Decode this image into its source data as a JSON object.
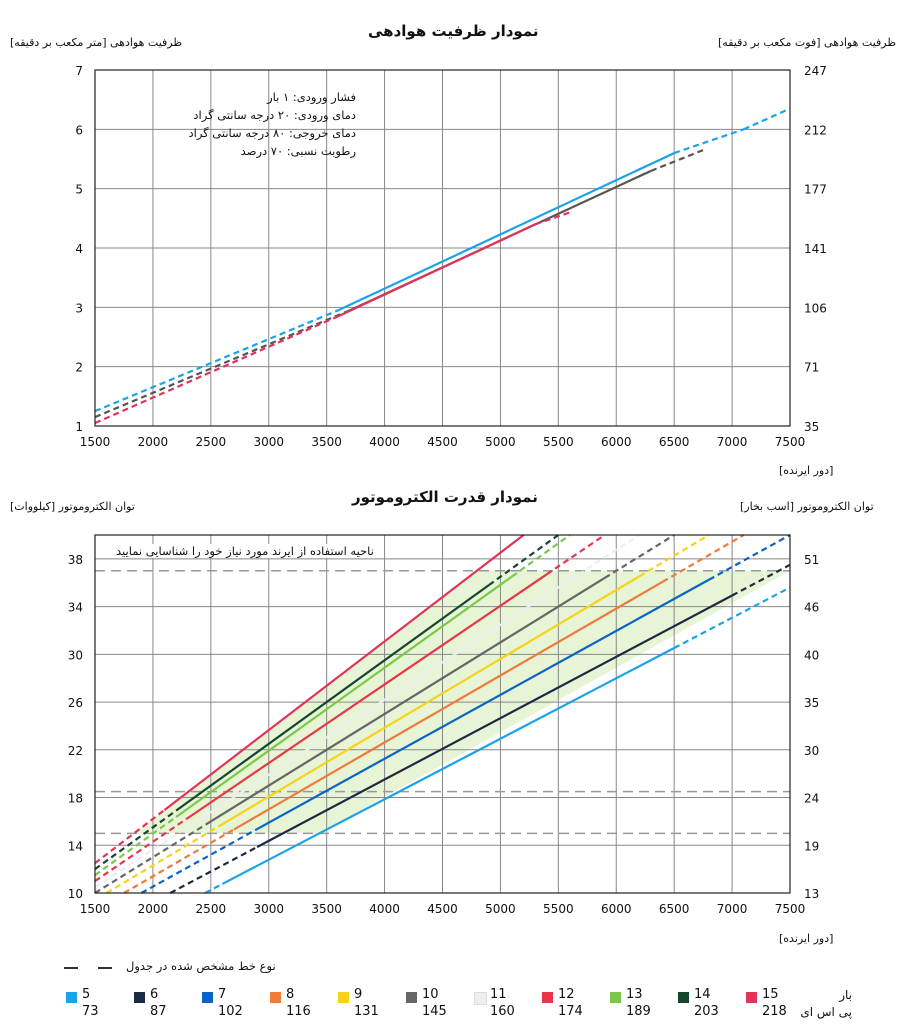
{
  "top_chart": {
    "title": "نمودار ظرفیت هوادهی",
    "left_axis_label": "ظرفیت هوادهی [متر مکعب بر دقیقه]",
    "right_axis_label": "ظرفیت هوادهی [فوت مکعب بر دقیقه]",
    "x_unit": "[دور ایرنده]",
    "conditions": [
      "فشار ورودی: ۱ بار",
      "دمای ورودی: ۲۰ درجه سانتی گراد",
      "دمای خروجی: ۸۰ درجه سانتی گراد",
      "رطوبت نسبی: ۷۰ درصد"
    ]
  },
  "bottom_chart": {
    "title": "نمودار قدرت الکتروموتور",
    "left_axis_label": "توان الکتروموتور [کیلووات]",
    "right_axis_label": "توان الکتروموتور [اسب بخار]",
    "x_unit": "[دور ایرنده]",
    "region_note": "ناحیه استفاده از ایرند مورد نیاز خود را شناسایی نمایید"
  },
  "legend": {
    "line_note": "نوع خط مشخص شده در جدول",
    "row_bar": "بار",
    "row_ps": "پی اس ای",
    "items": [
      {
        "bar": "5",
        "psi": "73",
        "color": "#1aa3e8"
      },
      {
        "bar": "6",
        "psi": "87",
        "color": "#1d2a44"
      },
      {
        "bar": "7",
        "psi": "102",
        "color": "#0b63c5"
      },
      {
        "bar": "8",
        "psi": "116",
        "color": "#f07a3a"
      },
      {
        "bar": "9",
        "psi": "131",
        "color": "#f7d21a"
      },
      {
        "bar": "10",
        "psi": "145",
        "color": "#666666"
      },
      {
        "bar": "11",
        "psi": "160",
        "color": "#eeeeee"
      },
      {
        "bar": "12",
        "psi": "174",
        "color": "#e8354a"
      },
      {
        "bar": "13",
        "psi": "189",
        "color": "#7cc84a"
      },
      {
        "bar": "14",
        "psi": "203",
        "color": "#16472e"
      },
      {
        "bar": "15",
        "psi": "218",
        "color": "#e0345a"
      }
    ]
  },
  "chart_data": [
    {
      "type": "line",
      "title": "نمودار ظرفیت هوادهی",
      "xlabel": "[دور ایرنده]",
      "ylabel": "ظرفیت هوادهی [متر مکعب بر دقیقه]",
      "y2label": "ظرفیت هوادهی [فوت مکعب بر دقیقه]",
      "xlim": [
        1500,
        7500
      ],
      "ylim": [
        1,
        7
      ],
      "x_ticks": [
        1500,
        2000,
        2500,
        3000,
        3500,
        4000,
        4500,
        5000,
        5500,
        6000,
        6500,
        7000,
        7500
      ],
      "y_ticks": [
        1,
        2,
        3,
        4,
        5,
        6,
        7
      ],
      "y2_ticks": [
        "35",
        "71",
        "106",
        "141",
        "177",
        "212",
        "247"
      ],
      "grid": true,
      "series": [
        {
          "color": "#1aa3e8",
          "x": [
            1500,
            3600,
            6500,
            7100,
            7500
          ],
          "y": [
            1.25,
            2.95,
            5.6,
            6.0,
            6.35
          ],
          "solid_range": [
            3600,
            6500
          ]
        },
        {
          "color": "#555555",
          "x": [
            1500,
            3700,
            6300,
            6750
          ],
          "y": [
            1.15,
            2.95,
            5.3,
            5.65
          ],
          "solid_range": [
            3700,
            6300
          ]
        },
        {
          "color": "#e0345a",
          "x": [
            1500,
            3600,
            5300,
            5600
          ],
          "y": [
            1.05,
            2.85,
            4.4,
            4.6
          ],
          "solid_range": [
            3600,
            5300
          ]
        }
      ]
    },
    {
      "type": "line",
      "title": "نمودار قدرت الکتروموتور",
      "xlabel": "[دور ایرنده]",
      "ylabel": "توان الکتروموتور [کیلووات]",
      "y2label": "توان الکتروموتور [اسب بخار]",
      "xlim": [
        1500,
        7500
      ],
      "ylim": [
        10,
        40
      ],
      "x_ticks": [
        1500,
        2000,
        2500,
        3000,
        3500,
        4000,
        4500,
        5000,
        5500,
        6000,
        6500,
        7000,
        7500
      ],
      "y_ticks": [
        10,
        14,
        18,
        22,
        26,
        30,
        34,
        38
      ],
      "y2_ticks": [
        "13",
        "19",
        "24",
        "30",
        "35",
        "40",
        "46",
        "51"
      ],
      "grid": true,
      "dashed_reference_levels": [
        37,
        18.5,
        15
      ],
      "series": [
        {
          "name": "5",
          "color": "#1aa3e8",
          "x0": 2450,
          "x1": 7500,
          "y0": 10,
          "y1": 35.6,
          "solid_range": [
            2600,
            6500
          ]
        },
        {
          "name": "6",
          "color": "#1d2a44",
          "x0": 2150,
          "x1": 7500,
          "y0": 10,
          "y1": 37.5,
          "solid_range": [
            2900,
            7000
          ]
        },
        {
          "name": "7",
          "color": "#0b63c5",
          "x0": 1900,
          "x1": 7500,
          "y0": 10,
          "y1": 40,
          "solid_range": [
            2900,
            6800
          ]
        },
        {
          "name": "8",
          "color": "#f07a3a",
          "x0": 1750,
          "x1": 7100,
          "y0": 10,
          "y1": 40,
          "solid_range": [
            2700,
            6400
          ]
        },
        {
          "name": "9",
          "color": "#f7d21a",
          "x0": 1600,
          "x1": 6800,
          "y0": 10,
          "y1": 40,
          "solid_range": [
            2600,
            6200
          ]
        },
        {
          "name": "10",
          "color": "#666666",
          "x0": 1500,
          "x1": 6500,
          "y0": 10,
          "y1": 40,
          "solid_range": [
            2500,
            5900
          ]
        },
        {
          "name": "11",
          "color": "#eeeeee",
          "x0": 1500,
          "x1": 6200,
          "y0": 10.5,
          "y1": 40,
          "solid_range": [
            2400,
            5600
          ]
        },
        {
          "name": "12",
          "color": "#e8354a",
          "x0": 1500,
          "x1": 5900,
          "y0": 11,
          "y1": 40,
          "solid_range": [
            2300,
            5400
          ]
        },
        {
          "name": "13",
          "color": "#7cc84a",
          "x0": 1500,
          "x1": 5600,
          "y0": 11.5,
          "y1": 40,
          "solid_range": [
            2200,
            5100
          ]
        },
        {
          "name": "14",
          "color": "#16472e",
          "x0": 1500,
          "x1": 5500,
          "y0": 12,
          "y1": 40,
          "solid_range": [
            2200,
            4900
          ]
        },
        {
          "name": "15",
          "color": "#e0345a",
          "x0": 1500,
          "x1": 5200,
          "y0": 12.5,
          "y1": 40,
          "solid_range": [
            2100,
            5200
          ]
        }
      ]
    }
  ]
}
